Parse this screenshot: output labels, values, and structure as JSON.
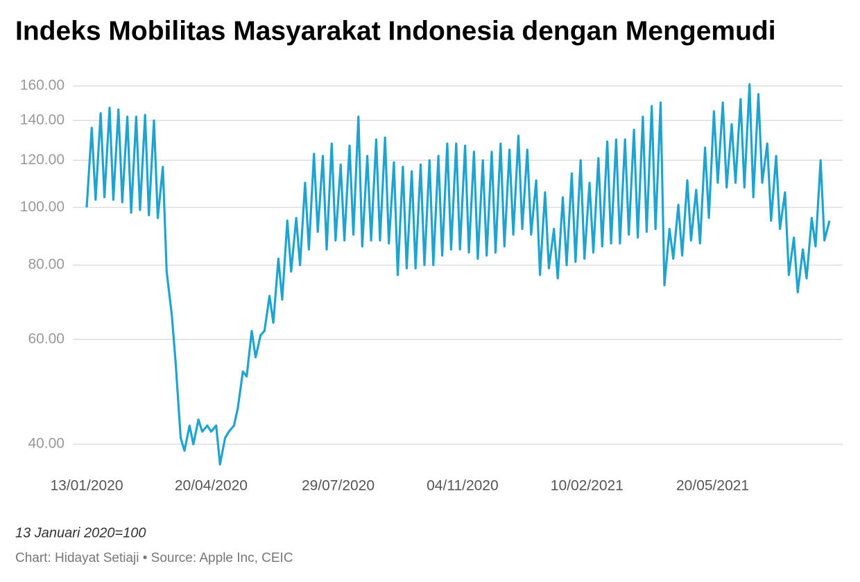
{
  "chart_data": {
    "type": "line",
    "title": "Indeks Mobilitas Masyarakat Indonesia dengan Mengemudi",
    "note": "13 Januari 2020=100",
    "credit": "Chart: Hidayat Setiaji • Source: Apple Inc, CEIC",
    "log_scale": true,
    "grid": true,
    "xlim": [
      "2020-01-13",
      "2021-08-20"
    ],
    "xticks": [
      {
        "value": "2020-01-13",
        "label": "13/01/2020"
      },
      {
        "value": "2020-04-20",
        "label": "20/04/2020"
      },
      {
        "value": "2020-07-29",
        "label": "29/07/2020"
      },
      {
        "value": "2020-11-04",
        "label": "04/11/2020"
      },
      {
        "value": "2021-02-10",
        "label": "10/02/2021"
      },
      {
        "value": "2021-05-20",
        "label": "20/05/2021"
      }
    ],
    "ylim": [
      35,
      165
    ],
    "yticks": [
      {
        "value": 40,
        "label": "40.00"
      },
      {
        "value": 60,
        "label": "60.00"
      },
      {
        "value": 80,
        "label": "80.00"
      },
      {
        "value": 100,
        "label": "100.00"
      },
      {
        "value": 120,
        "label": "120.00"
      },
      {
        "value": 140,
        "label": "140.00"
      },
      {
        "value": 160,
        "label": "160.00"
      }
    ],
    "x": [
      "2020-01-13",
      "2020-01-17",
      "2020-01-20",
      "2020-01-24",
      "2020-01-27",
      "2020-01-31",
      "2020-02-03",
      "2020-02-07",
      "2020-02-10",
      "2020-02-14",
      "2020-02-17",
      "2020-02-21",
      "2020-02-24",
      "2020-02-28",
      "2020-03-02",
      "2020-03-06",
      "2020-03-09",
      "2020-03-13",
      "2020-03-16",
      "2020-03-20",
      "2020-03-23",
      "2020-03-27",
      "2020-03-30",
      "2020-04-03",
      "2020-04-06",
      "2020-04-10",
      "2020-04-13",
      "2020-04-17",
      "2020-04-20",
      "2020-04-24",
      "2020-04-27",
      "2020-05-01",
      "2020-05-04",
      "2020-05-08",
      "2020-05-11",
      "2020-05-15",
      "2020-05-18",
      "2020-05-22",
      "2020-05-25",
      "2020-05-29",
      "2020-06-01",
      "2020-06-05",
      "2020-06-08",
      "2020-06-12",
      "2020-06-15",
      "2020-06-19",
      "2020-06-22",
      "2020-06-26",
      "2020-06-29",
      "2020-07-03",
      "2020-07-06",
      "2020-07-10",
      "2020-07-13",
      "2020-07-17",
      "2020-07-20",
      "2020-07-24",
      "2020-07-27",
      "2020-07-31",
      "2020-08-03",
      "2020-08-07",
      "2020-08-10",
      "2020-08-14",
      "2020-08-17",
      "2020-08-21",
      "2020-08-24",
      "2020-08-28",
      "2020-08-31",
      "2020-09-04",
      "2020-09-07",
      "2020-09-11",
      "2020-09-14",
      "2020-09-18",
      "2020-09-21",
      "2020-09-25",
      "2020-09-28",
      "2020-10-02",
      "2020-10-05",
      "2020-10-09",
      "2020-10-12",
      "2020-10-16",
      "2020-10-19",
      "2020-10-23",
      "2020-10-26",
      "2020-10-30",
      "2020-11-02",
      "2020-11-06",
      "2020-11-09",
      "2020-11-13",
      "2020-11-16",
      "2020-11-20",
      "2020-11-23",
      "2020-11-27",
      "2020-11-30",
      "2020-12-04",
      "2020-12-07",
      "2020-12-11",
      "2020-12-14",
      "2020-12-18",
      "2020-12-21",
      "2020-12-25",
      "2020-12-28",
      "2021-01-01",
      "2021-01-04",
      "2021-01-08",
      "2021-01-11",
      "2021-01-15",
      "2021-01-18",
      "2021-01-22",
      "2021-01-25",
      "2021-01-29",
      "2021-02-01",
      "2021-02-05",
      "2021-02-08",
      "2021-02-12",
      "2021-02-15",
      "2021-02-19",
      "2021-02-22",
      "2021-02-26",
      "2021-03-01",
      "2021-03-05",
      "2021-03-08",
      "2021-03-12",
      "2021-03-15",
      "2021-03-19",
      "2021-03-22",
      "2021-03-26",
      "2021-03-29",
      "2021-04-02",
      "2021-04-05",
      "2021-04-09",
      "2021-04-12",
      "2021-04-16",
      "2021-04-19",
      "2021-04-23",
      "2021-04-26",
      "2021-04-30",
      "2021-05-03",
      "2021-05-07",
      "2021-05-10",
      "2021-05-14",
      "2021-05-17",
      "2021-05-21",
      "2021-05-24",
      "2021-05-28",
      "2021-05-31",
      "2021-06-04",
      "2021-06-07",
      "2021-06-11",
      "2021-06-14",
      "2021-06-18",
      "2021-06-21",
      "2021-06-25",
      "2021-06-28",
      "2021-07-02",
      "2021-07-05",
      "2021-07-09",
      "2021-07-12",
      "2021-07-16",
      "2021-07-19",
      "2021-07-23",
      "2021-07-26",
      "2021-07-30",
      "2021-08-02",
      "2021-08-06",
      "2021-08-09",
      "2021-08-13",
      "2021-08-16",
      "2021-08-20"
    ],
    "series": [
      {
        "name": "Mengemudi",
        "color": "#1fa3d1",
        "values": [
          100,
          136,
          103,
          144,
          104,
          147,
          103,
          146,
          102,
          142,
          98,
          142,
          99,
          143,
          97,
          140,
          96,
          117,
          78,
          66,
          55,
          41,
          39,
          43,
          40,
          44,
          42,
          43,
          42,
          43,
          37,
          41,
          42,
          43,
          46,
          53,
          52,
          62,
          56,
          61,
          62,
          71,
          64,
          82,
          70,
          95,
          78,
          96,
          80,
          110,
          85,
          123,
          91,
          122,
          85,
          128,
          88,
          118,
          88,
          127,
          90,
          142,
          86,
          122,
          88,
          130,
          88,
          131,
          87,
          119,
          77,
          117,
          79,
          115,
          79,
          118,
          80,
          120,
          80,
          122,
          83,
          128,
          85,
          128,
          85,
          127,
          84,
          124,
          82,
          120,
          83,
          124,
          84,
          128,
          86,
          125,
          90,
          132,
          92,
          125,
          90,
          111,
          77,
          106,
          79,
          92,
          76,
          104,
          80,
          114,
          81,
          120,
          82,
          110,
          84,
          121,
          86,
          129,
          87,
          130,
          87,
          130,
          90,
          135,
          89,
          142,
          91,
          148,
          92,
          150,
          74,
          92,
          82,
          101,
          83,
          111,
          88,
          107,
          87,
          126,
          96,
          145,
          110,
          150,
          108,
          138,
          110,
          152,
          108,
          161,
          104,
          155,
          110,
          128,
          95,
          122,
          92,
          106,
          77,
          89,
          72,
          85,
          76,
          96,
          86,
          120,
          88,
          95
        ]
      }
    ]
  }
}
